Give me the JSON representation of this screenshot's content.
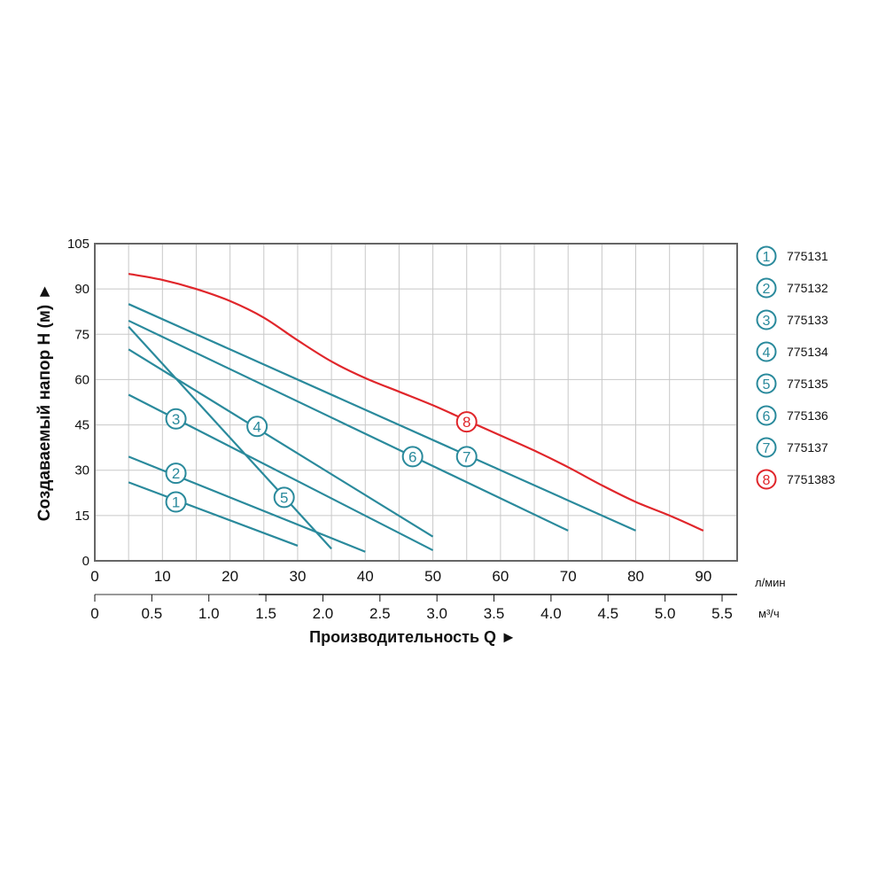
{
  "chart_data": {
    "type": "line",
    "ylabel": "Создаваемый напор H (м) ►",
    "xlabel": "Производительность Q ►",
    "x_unit": "л/мин",
    "x2_unit": "м³/ч",
    "xlim": [
      0,
      95
    ],
    "ylim": [
      0,
      105
    ],
    "x_ticks": [
      "0",
      "10",
      "20",
      "30",
      "40",
      "50",
      "60",
      "70",
      "80",
      "90"
    ],
    "x2_ticks": [
      "0",
      "0.5",
      "1.0",
      "1.5",
      "2.0",
      "2.5",
      "3.0",
      "3.5",
      "4.0",
      "4.5",
      "5.0",
      "5.5"
    ],
    "y_ticks": [
      "0",
      "15",
      "30",
      "45",
      "60",
      "75",
      "90",
      "105"
    ],
    "grid": true,
    "legend_position": "right",
    "colors": {
      "blue": "#2a8a9c",
      "red": "#e0262b",
      "grid": "#c8c8c8"
    },
    "series": [
      {
        "marker": "1",
        "name": "775131",
        "color": "#2a8a9c",
        "x": [
          5,
          30
        ],
        "y": [
          26,
          5
        ],
        "label_at": [
          12,
          19.5
        ]
      },
      {
        "marker": "2",
        "name": "775132",
        "color": "#2a8a9c",
        "x": [
          5,
          40
        ],
        "y": [
          34.5,
          3
        ],
        "label_at": [
          12,
          29
        ]
      },
      {
        "marker": "3",
        "name": "775133",
        "color": "#2a8a9c",
        "x": [
          5,
          50
        ],
        "y": [
          55,
          3.5
        ],
        "label_at": [
          12,
          47
        ]
      },
      {
        "marker": "4",
        "name": "775134",
        "color": "#2a8a9c",
        "x": [
          5,
          50
        ],
        "y": [
          70,
          8
        ],
        "label_at": [
          24,
          44.5
        ]
      },
      {
        "marker": "5",
        "name": "775135",
        "color": "#2a8a9c",
        "x": [
          5,
          35
        ],
        "y": [
          77.5,
          4
        ],
        "label_at": [
          28,
          21
        ]
      },
      {
        "marker": "6",
        "name": "775136",
        "color": "#2a8a9c",
        "x": [
          5,
          70
        ],
        "y": [
          79.5,
          10
        ],
        "label_at": [
          47,
          34.5
        ]
      },
      {
        "marker": "7",
        "name": "775137",
        "color": "#2a8a9c",
        "x": [
          5,
          80
        ],
        "y": [
          85,
          10
        ],
        "label_at": [
          55,
          34.5
        ]
      },
      {
        "marker": "8",
        "name": "7751383",
        "color": "#e0262b",
        "x": [
          5,
          10,
          15,
          20,
          25,
          30,
          35,
          40,
          45,
          50,
          55,
          60,
          65,
          70,
          75,
          80,
          85,
          90
        ],
        "y": [
          95,
          93,
          90,
          86,
          80.5,
          73,
          66,
          60.5,
          56,
          51.5,
          46.5,
          41.5,
          36.5,
          31,
          25,
          19.5,
          15,
          10
        ],
        "label_at": [
          55,
          46
        ]
      }
    ]
  }
}
